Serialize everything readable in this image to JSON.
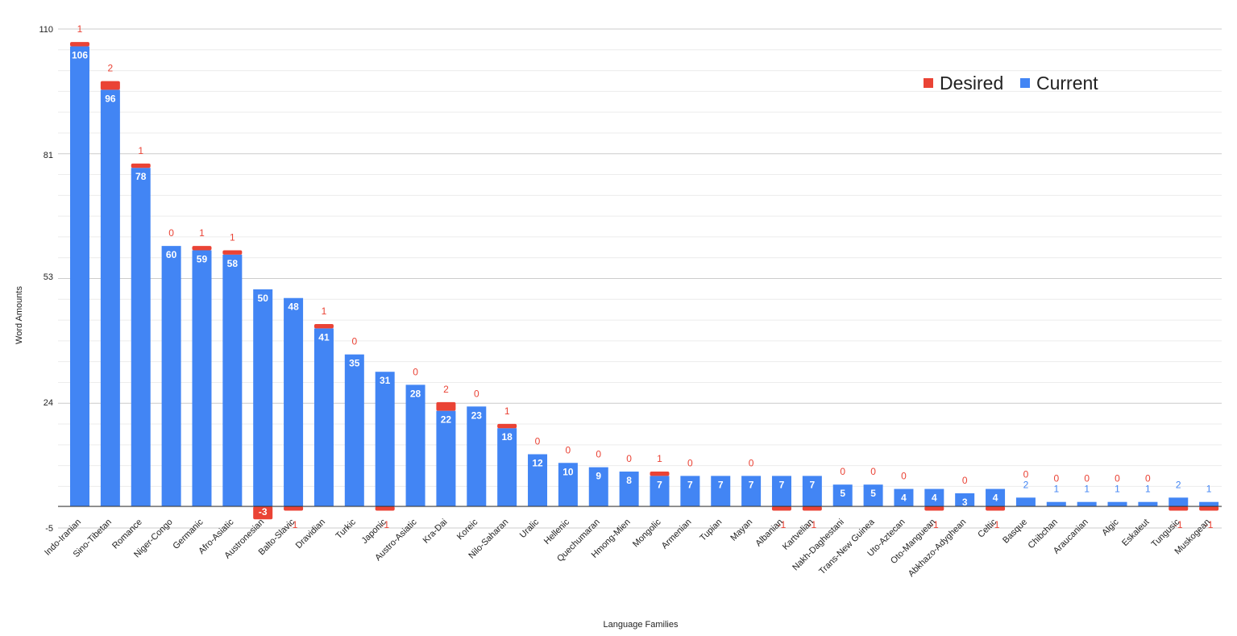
{
  "chart_data": {
    "type": "bar",
    "stacked": true,
    "xlabel": "Language Families",
    "ylabel": "Word Amounts",
    "ylim": [
      -5,
      110
    ],
    "yticks": [
      -5,
      24,
      53,
      81,
      110
    ],
    "grid": true,
    "legend_position": "top-right",
    "categories": [
      "Indo-Iranian",
      "Sino-Tibetan",
      "Romance",
      "Niger-Congo",
      "Germanic",
      "Afro-Asiatic",
      "Austronesian",
      "Balto-Slavic",
      "Dravidian",
      "Turkic",
      "Japonic",
      "Austro-Asiatic",
      "Kra-Dai",
      "Koreic",
      "Nilo-Saharan",
      "Uralic",
      "Hellenic",
      "Quechumaran",
      "Hmong-Mien",
      "Mongolic",
      "Armenian",
      "Tupian",
      "Mayan",
      "Albanian",
      "Kartvelian",
      "Nakh-Daghestani",
      "Trans-New Guinea",
      "Uto-Aztecan",
      "Oto-Manguean",
      "Abkhazo-Adyghean",
      "Celtic",
      "Basque",
      "Chibchan",
      "Araucanian",
      "Algic",
      "Eskaleut",
      "Tungusic",
      "Muskogean"
    ],
    "series": [
      {
        "name": "Current",
        "color": "#4285f4",
        "values": [
          106,
          96,
          78,
          60,
          59,
          58,
          50,
          48,
          41,
          35,
          31,
          28,
          22,
          23,
          18,
          12,
          10,
          9,
          8,
          7,
          7,
          7,
          7,
          7,
          7,
          5,
          5,
          4,
          4,
          3,
          4,
          2,
          1,
          1,
          1,
          1,
          2,
          1
        ]
      },
      {
        "name": "Desired",
        "color": "#ea4335",
        "values": [
          1,
          2,
          1,
          0,
          1,
          1,
          -3,
          -1,
          1,
          0,
          -1,
          0,
          2,
          0,
          1,
          0,
          0,
          0,
          0,
          1,
          0,
          null,
          0,
          -1,
          -1,
          0,
          0,
          0,
          -1,
          0,
          -1,
          0,
          0,
          0,
          0,
          0,
          -1,
          -1
        ]
      }
    ],
    "top_labels": [
      "1",
      "2",
      "1",
      "0",
      "1",
      "1",
      "",
      "-1",
      "1",
      "0",
      "-1",
      "0",
      "2",
      "0",
      "1",
      "0",
      "0",
      "0",
      "0",
      "1",
      "0",
      "",
      "0",
      "-1",
      "-1",
      "0",
      "0",
      "0",
      "-1",
      "0",
      "-1",
      "0",
      "0",
      "0",
      "0",
      "0",
      "-1",
      "-1"
    ],
    "top_label_colors": [
      "red",
      "red",
      "red",
      "red",
      "red",
      "red",
      "red",
      "red",
      "red",
      "red",
      "red",
      "red",
      "red",
      "red",
      "red",
      "red",
      "red",
      "red",
      "red",
      "red",
      "red",
      "red",
      "red",
      "red",
      "red",
      "red",
      "red",
      "red",
      "red",
      "red",
      "red",
      "red",
      "red",
      "red",
      "red",
      "red",
      "red",
      "red"
    ],
    "top_label_series": [
      "Desired",
      "Desired",
      "Desired",
      "Desired",
      "Desired",
      "Desired",
      "Desired",
      "Desired",
      "Desired",
      "Desired",
      "Desired",
      "Desired",
      "Desired",
      "Desired",
      "Desired",
      "Desired",
      "Desired",
      "Desired",
      "Desired",
      "Desired",
      "Desired",
      "Desired",
      "Desired",
      "Desired",
      "Desired",
      "Desired",
      "Desired",
      "Desired",
      "Desired",
      "Desired",
      "Desired",
      "Current",
      "Current",
      "Current",
      "Current",
      "Current",
      "Current",
      "Current"
    ],
    "top_label_text": [
      "1",
      "2",
      "1",
      "0",
      "1",
      "1",
      "",
      "-1",
      "1",
      "0",
      "-1",
      "0",
      "2",
      "0",
      "1",
      "0",
      "0",
      "0",
      "0",
      "1",
      "0",
      "",
      "0",
      "-1",
      "-1",
      "0",
      "0",
      "0",
      "-1",
      "0",
      "-1",
      "0",
      "0",
      "0",
      "0",
      "0",
      "-1",
      "-1"
    ],
    "inner_labels": [
      "106",
      "96",
      "78",
      "60",
      "59",
      "58",
      "50",
      "48",
      "41",
      "35",
      "31",
      "28",
      "22",
      "23",
      "18",
      "12",
      "10",
      "9",
      "8",
      "7",
      "7",
      "7",
      "7",
      "7",
      "7",
      "5",
      "5",
      "4",
      "4",
      "3",
      "4",
      "",
      "",
      "",
      "",
      "",
      "",
      ""
    ],
    "extra_labels": {
      "Basque": {
        "red_above": "0",
        "blue_below": "2"
      },
      "Chibchan": {
        "red_above": "0",
        "blue_below": "1"
      },
      "Araucanian": {
        "red_above": "0",
        "blue_below": "1"
      },
      "Algic": {
        "red_above": "0",
        "blue_below": "1"
      },
      "Eskaleut": {
        "red_above": "0",
        "blue_below": "1"
      },
      "Tungusic": {
        "blue_above": "2",
        "red_below": "-1"
      },
      "Muskogean": {
        "blue_above": "1",
        "red_below": "-1"
      }
    },
    "austronesian_inner_red": "-3"
  },
  "legend": {
    "desired_label": "Desired",
    "current_label": "Current",
    "desired_color": "#ea4335",
    "current_color": "#4285f4"
  }
}
